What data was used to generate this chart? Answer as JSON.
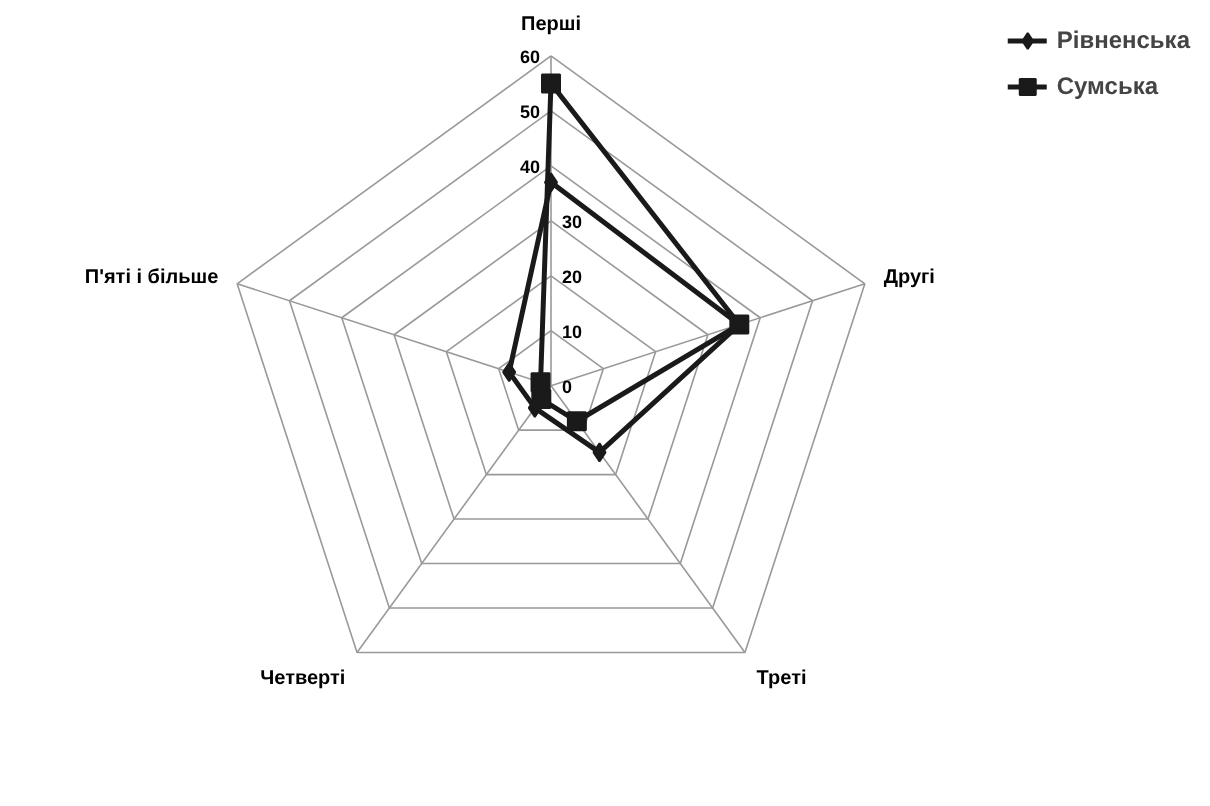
{
  "chart_data": {
    "type": "radar",
    "categories": [
      "Перші",
      "Другі",
      "Треті",
      "Четверті",
      "П'яті і більше"
    ],
    "series": [
      {
        "name": "Рівненська",
        "color": "#1a1a1a",
        "marker": "diamond",
        "values": [
          37,
          36,
          15,
          5,
          8
        ]
      },
      {
        "name": "Сумська",
        "color": "#1a1a1a",
        "marker": "square",
        "values": [
          55,
          36,
          8,
          3,
          2
        ]
      }
    ],
    "ylim": [
      0,
      60
    ],
    "yticks": [
      0,
      10,
      20,
      30,
      40,
      50,
      60
    ],
    "grid": true,
    "legend": "top right"
  }
}
